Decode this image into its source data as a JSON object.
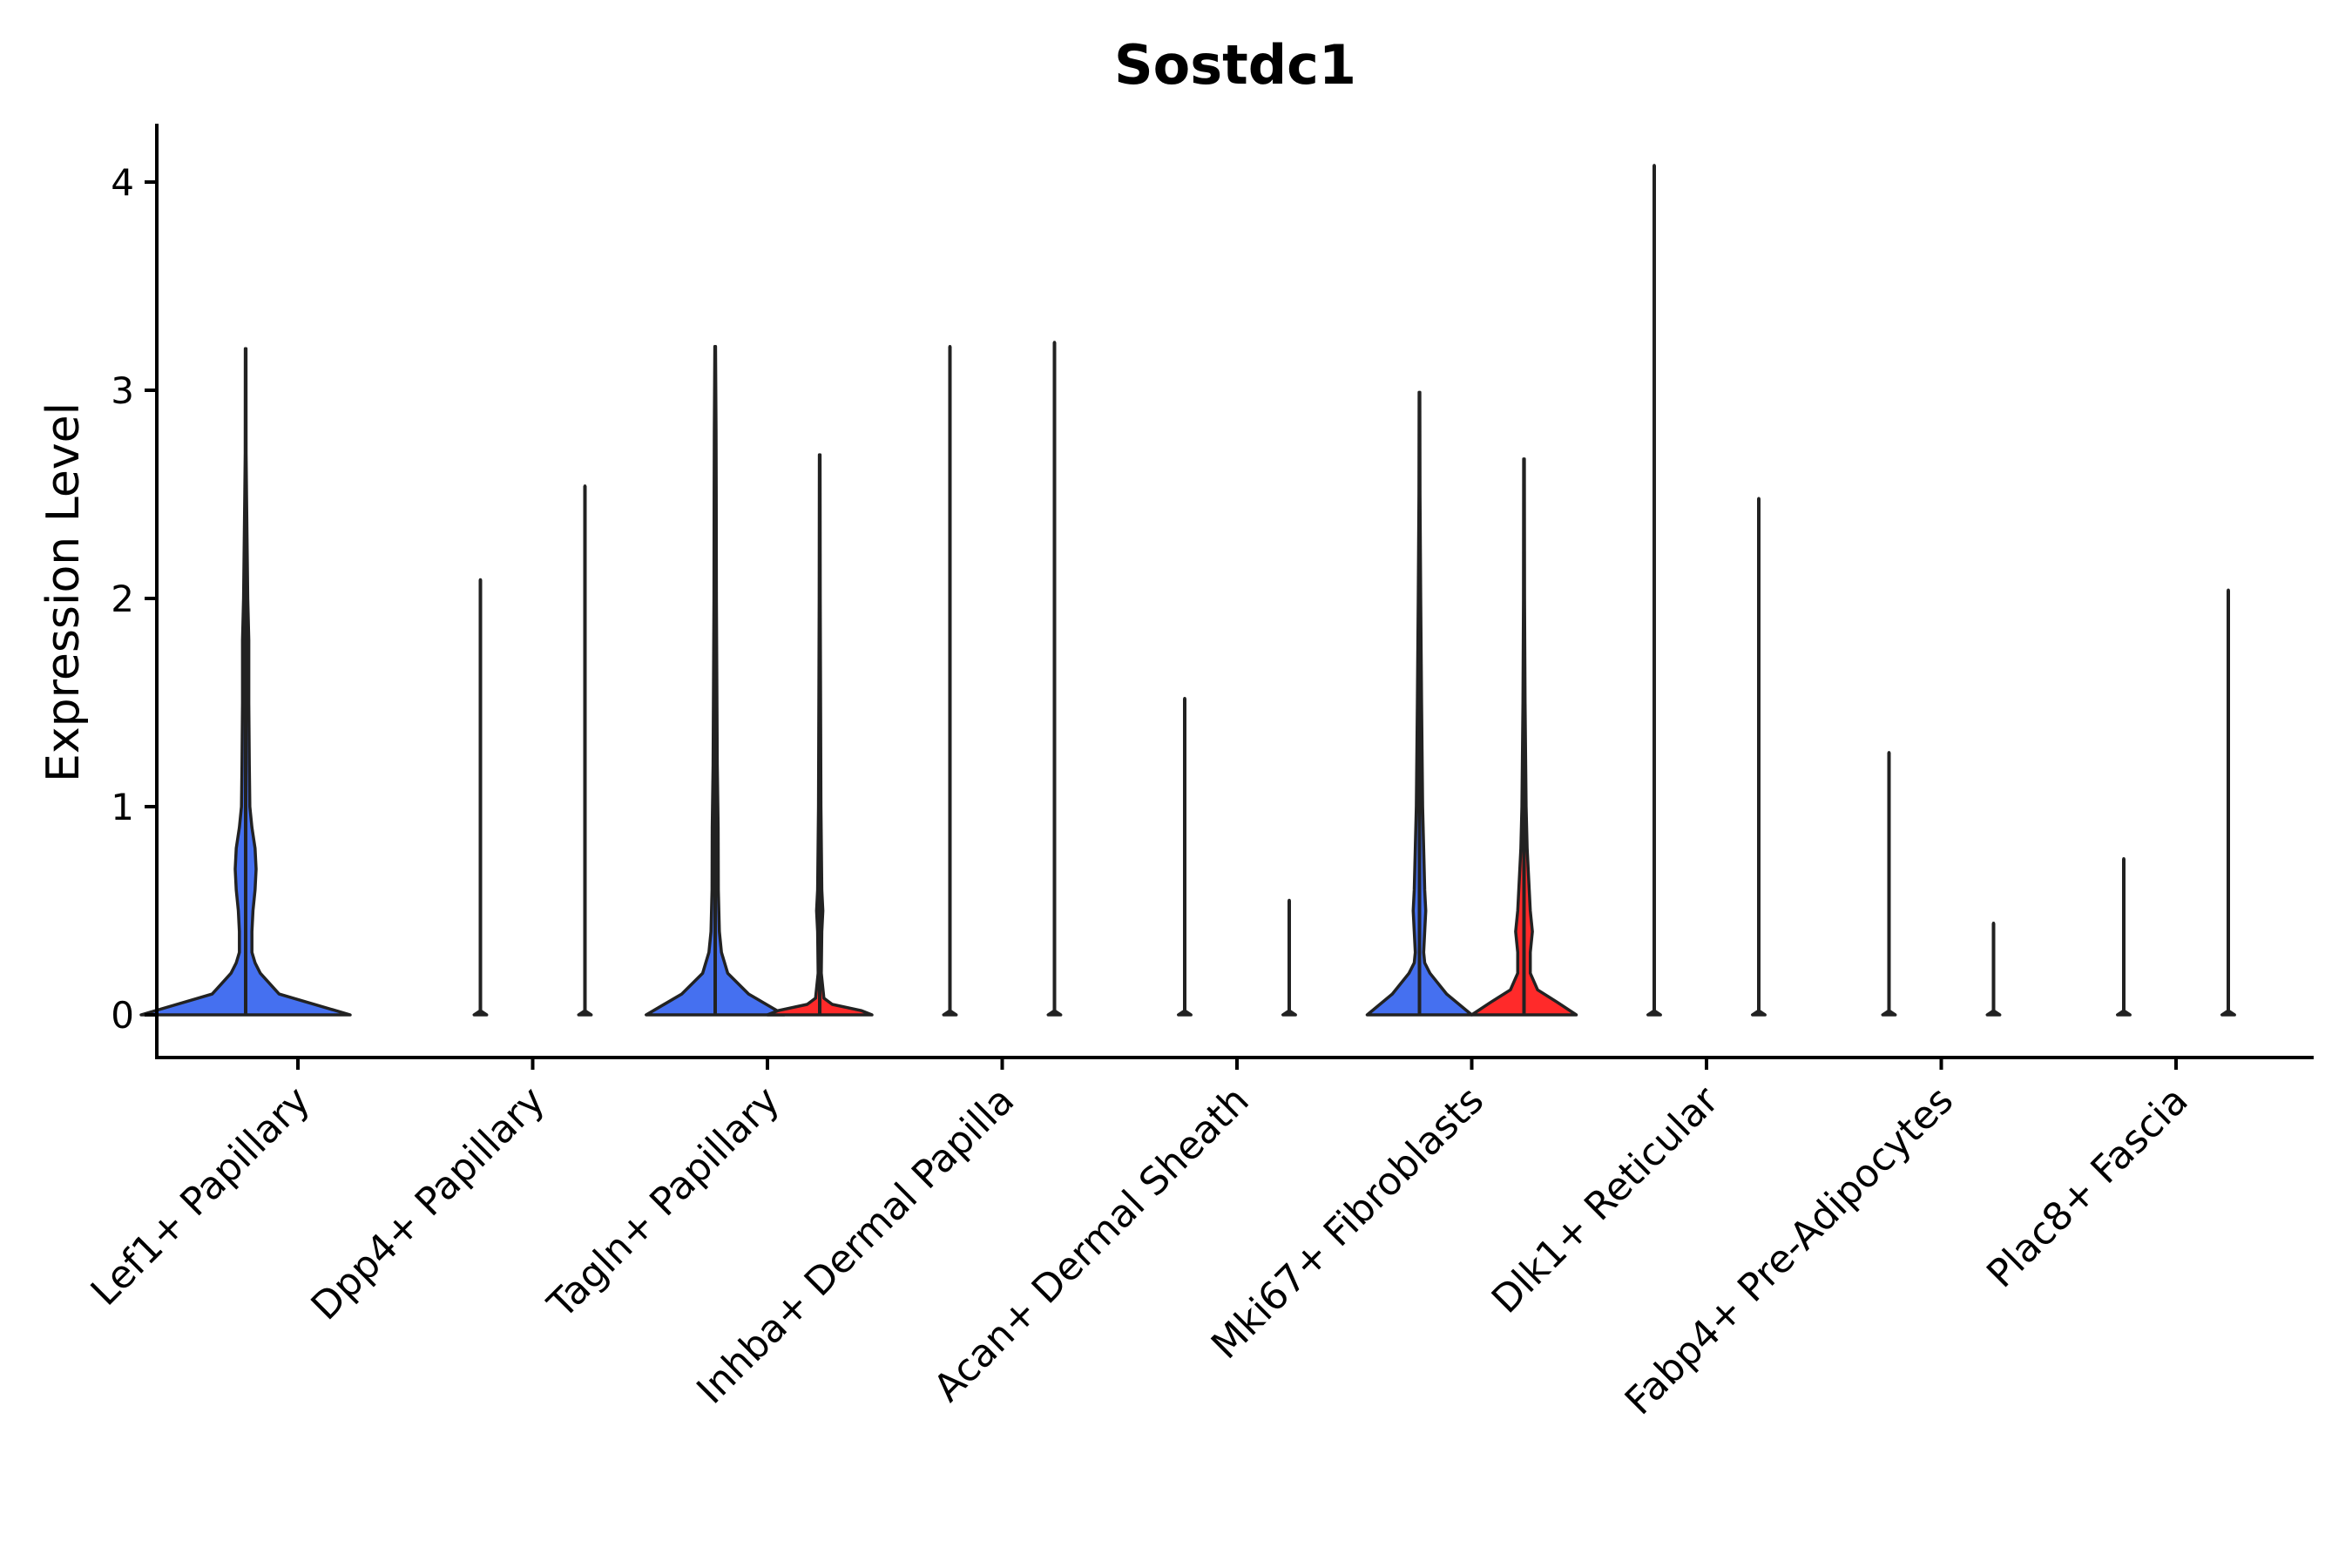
{
  "chart_data": {
    "type": "violin",
    "title": "Sostdc1",
    "xlabel": "",
    "ylabel": "Expression Level",
    "ylim": [
      -0.2,
      4.3
    ],
    "y_ticks": [
      "0",
      "1",
      "2",
      "3",
      "4"
    ],
    "y_tick_values": [
      0,
      1,
      2,
      3,
      4
    ],
    "grid": false,
    "legend": "none",
    "colors": {
      "group_a": "#4570f0",
      "group_b": "#ff2a2a",
      "outline": "#222222",
      "axis": "#000000"
    },
    "categories": [
      "Lef1+ Papillary",
      "Dpp4+ Papillary",
      "Tagln+ Papillary",
      "Inhba+ Dermal Papilla",
      "Acan+ Dermal Sheath",
      "Mki67+ Fibroblasts",
      "Dlk1+ Reticular",
      "Fabp4+ Pre-Adipocytes",
      "Plac8+ Fascia"
    ],
    "series": [
      {
        "name": "group_a",
        "color": "#4570f0",
        "max_values": [
          3.2,
          2.09,
          3.21,
          3.21,
          1.52,
          2.99,
          4.08,
          1.26,
          0.75
        ],
        "profiles": [
          [
            [
              0,
              1.0
            ],
            [
              0.1,
              0.32
            ],
            [
              0.2,
              0.14
            ],
            [
              0.25,
              0.09
            ],
            [
              0.3,
              0.06
            ],
            [
              0.4,
              0.06
            ],
            [
              0.5,
              0.07
            ],
            [
              0.6,
              0.09
            ],
            [
              0.7,
              0.1
            ],
            [
              0.8,
              0.09
            ],
            [
              0.9,
              0.06
            ],
            [
              1.0,
              0.04
            ],
            [
              1.2,
              0.035
            ],
            [
              1.5,
              0.03
            ],
            [
              1.8,
              0.03
            ],
            [
              2.0,
              0.02
            ],
            [
              2.5,
              0.008
            ],
            [
              2.7,
              0.004
            ],
            [
              3.2,
              0.003
            ]
          ],
          [
            [
              0,
              0.06
            ],
            [
              0.02,
              0.0
            ],
            [
              2.09,
              0.0
            ]
          ],
          [
            [
              0,
              0.66
            ],
            [
              0.1,
              0.32
            ],
            [
              0.2,
              0.12
            ],
            [
              0.3,
              0.06
            ],
            [
              0.4,
              0.04
            ],
            [
              0.6,
              0.03
            ],
            [
              0.9,
              0.028
            ],
            [
              1.2,
              0.02
            ],
            [
              2.0,
              0.012
            ],
            [
              2.5,
              0.01
            ],
            [
              2.8,
              0.008
            ],
            [
              3.21,
              0.003
            ]
          ],
          [
            [
              0,
              0.06
            ],
            [
              0.02,
              0.0
            ],
            [
              3.21,
              0.0
            ]
          ],
          [
            [
              0,
              0.06
            ],
            [
              0.02,
              0.0
            ],
            [
              1.52,
              0.0
            ]
          ],
          [
            [
              0,
              0.5
            ],
            [
              0.1,
              0.26
            ],
            [
              0.2,
              0.1
            ],
            [
              0.25,
              0.05
            ],
            [
              0.3,
              0.04
            ],
            [
              0.4,
              0.05
            ],
            [
              0.5,
              0.06
            ],
            [
              0.6,
              0.05
            ],
            [
              0.8,
              0.04
            ],
            [
              1.0,
              0.03
            ],
            [
              1.5,
              0.02
            ],
            [
              2.0,
              0.012
            ],
            [
              2.5,
              0.005
            ],
            [
              2.99,
              0.003
            ]
          ],
          [
            [
              0,
              0.06
            ],
            [
              0.02,
              0.0
            ],
            [
              4.08,
              0.0
            ]
          ],
          [
            [
              0,
              0.06
            ],
            [
              0.02,
              0.0
            ],
            [
              1.26,
              0.0
            ]
          ],
          [
            [
              0,
              0.06
            ],
            [
              0.02,
              0.0
            ],
            [
              0.75,
              0.0
            ]
          ]
        ]
      },
      {
        "name": "group_b",
        "color": "#ff2a2a",
        "max_values": [
          null,
          2.54,
          2.69,
          3.23,
          0.55,
          2.67,
          2.48,
          0.44,
          2.04
        ],
        "profiles": [
          null,
          [
            [
              0,
              0.06
            ],
            [
              0.02,
              0.0
            ],
            [
              2.54,
              0.0
            ]
          ],
          [
            [
              0,
              0.5
            ],
            [
              0.02,
              0.4
            ],
            [
              0.05,
              0.12
            ],
            [
              0.08,
              0.04
            ],
            [
              0.2,
              0.015
            ],
            [
              0.4,
              0.02
            ],
            [
              0.5,
              0.03
            ],
            [
              0.6,
              0.02
            ],
            [
              1.0,
              0.012
            ],
            [
              1.5,
              0.008
            ],
            [
              2.0,
              0.005
            ],
            [
              2.69,
              0.003
            ]
          ],
          [
            [
              0,
              0.06
            ],
            [
              0.02,
              0.0
            ],
            [
              3.23,
              0.0
            ]
          ],
          [
            [
              0,
              0.06
            ],
            [
              0.02,
              0.0
            ],
            [
              0.55,
              0.0
            ]
          ],
          [
            [
              0,
              0.5
            ],
            [
              0.06,
              0.32
            ],
            [
              0.12,
              0.13
            ],
            [
              0.2,
              0.06
            ],
            [
              0.3,
              0.06
            ],
            [
              0.4,
              0.08
            ],
            [
              0.5,
              0.06
            ],
            [
              0.6,
              0.05
            ],
            [
              0.8,
              0.03
            ],
            [
              1.0,
              0.02
            ],
            [
              1.5,
              0.01
            ],
            [
              2.0,
              0.005
            ],
            [
              2.67,
              0.003
            ]
          ],
          [
            [
              0,
              0.06
            ],
            [
              0.02,
              0.0
            ],
            [
              2.48,
              0.0
            ]
          ],
          [
            [
              0,
              0.06
            ],
            [
              0.02,
              0.0
            ],
            [
              0.44,
              0.0
            ]
          ],
          [
            [
              0,
              0.06
            ],
            [
              0.02,
              0.0
            ],
            [
              2.04,
              0.0
            ]
          ]
        ]
      }
    ]
  }
}
